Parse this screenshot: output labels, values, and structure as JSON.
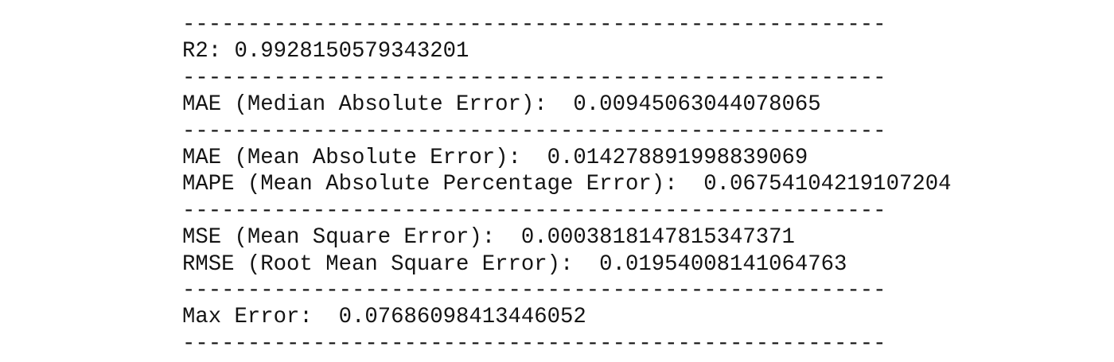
{
  "lines": [
    "------------------------------------------------------",
    "R2: 0.9928150579343201",
    "------------------------------------------------------",
    "MAE (Median Absolute Error):  0.00945063044078065",
    "------------------------------------------------------",
    "MAE (Mean Absolute Error):  0.014278891998839069",
    "MAPE (Mean Absolute Percentage Error):  0.06754104219107204",
    "------------------------------------------------------",
    "MSE (Mean Square Error):  0.0003818147815347371",
    "RMSE (Root Mean Square Error):  0.01954008141064763",
    "------------------------------------------------------",
    "Max Error:  0.07686098413446052",
    "------------------------------------------------------"
  ]
}
